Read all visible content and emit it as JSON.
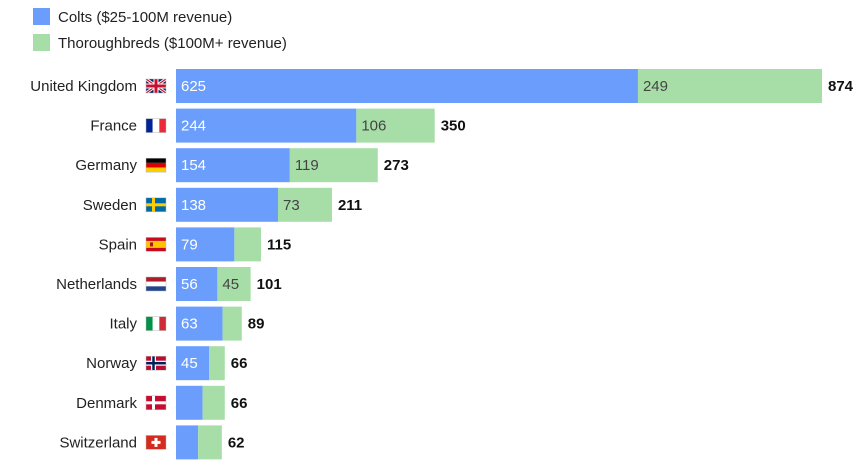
{
  "chart_data": {
    "type": "bar",
    "orientation": "horizontal",
    "stacked": true,
    "title": "",
    "xlabel": "",
    "ylabel": "",
    "grid": false,
    "legend_position": "top-left",
    "categories": [
      "United Kingdom",
      "France",
      "Germany",
      "Sweden",
      "Spain",
      "Netherlands",
      "Italy",
      "Norway",
      "Denmark",
      "Switzerland"
    ],
    "flag_icons": [
      "uk-flag-icon",
      "france-flag-icon",
      "germany-flag-icon",
      "sweden-flag-icon",
      "spain-flag-icon",
      "netherlands-flag-icon",
      "italy-flag-icon",
      "norway-flag-icon",
      "denmark-flag-icon",
      "switzerland-flag-icon"
    ],
    "series": [
      {
        "name": "Colts ($25-100M revenue)",
        "color": "#6a9dfc",
        "label_color": "#ffffff",
        "values": [
          625,
          244,
          154,
          138,
          79,
          56,
          63,
          45,
          36,
          30
        ],
        "labels": [
          "625",
          "244",
          "154",
          "138",
          "79",
          "56",
          "63",
          "45",
          "",
          ""
        ]
      },
      {
        "name": "Thoroughbreds ($100M+ revenue)",
        "color": "#a7dea7",
        "label_color": "#444444",
        "values": [
          249,
          106,
          119,
          73,
          36,
          45,
          26,
          21,
          30,
          32
        ],
        "labels": [
          "249",
          "106",
          "119",
          "73",
          "",
          "45",
          "",
          "",
          "",
          ""
        ]
      }
    ],
    "totals": [
      "874",
      "350",
      "273",
      "211",
      "115",
      "101",
      "89",
      "66",
      "66",
      "62"
    ],
    "xlim": [
      0,
      874
    ]
  }
}
